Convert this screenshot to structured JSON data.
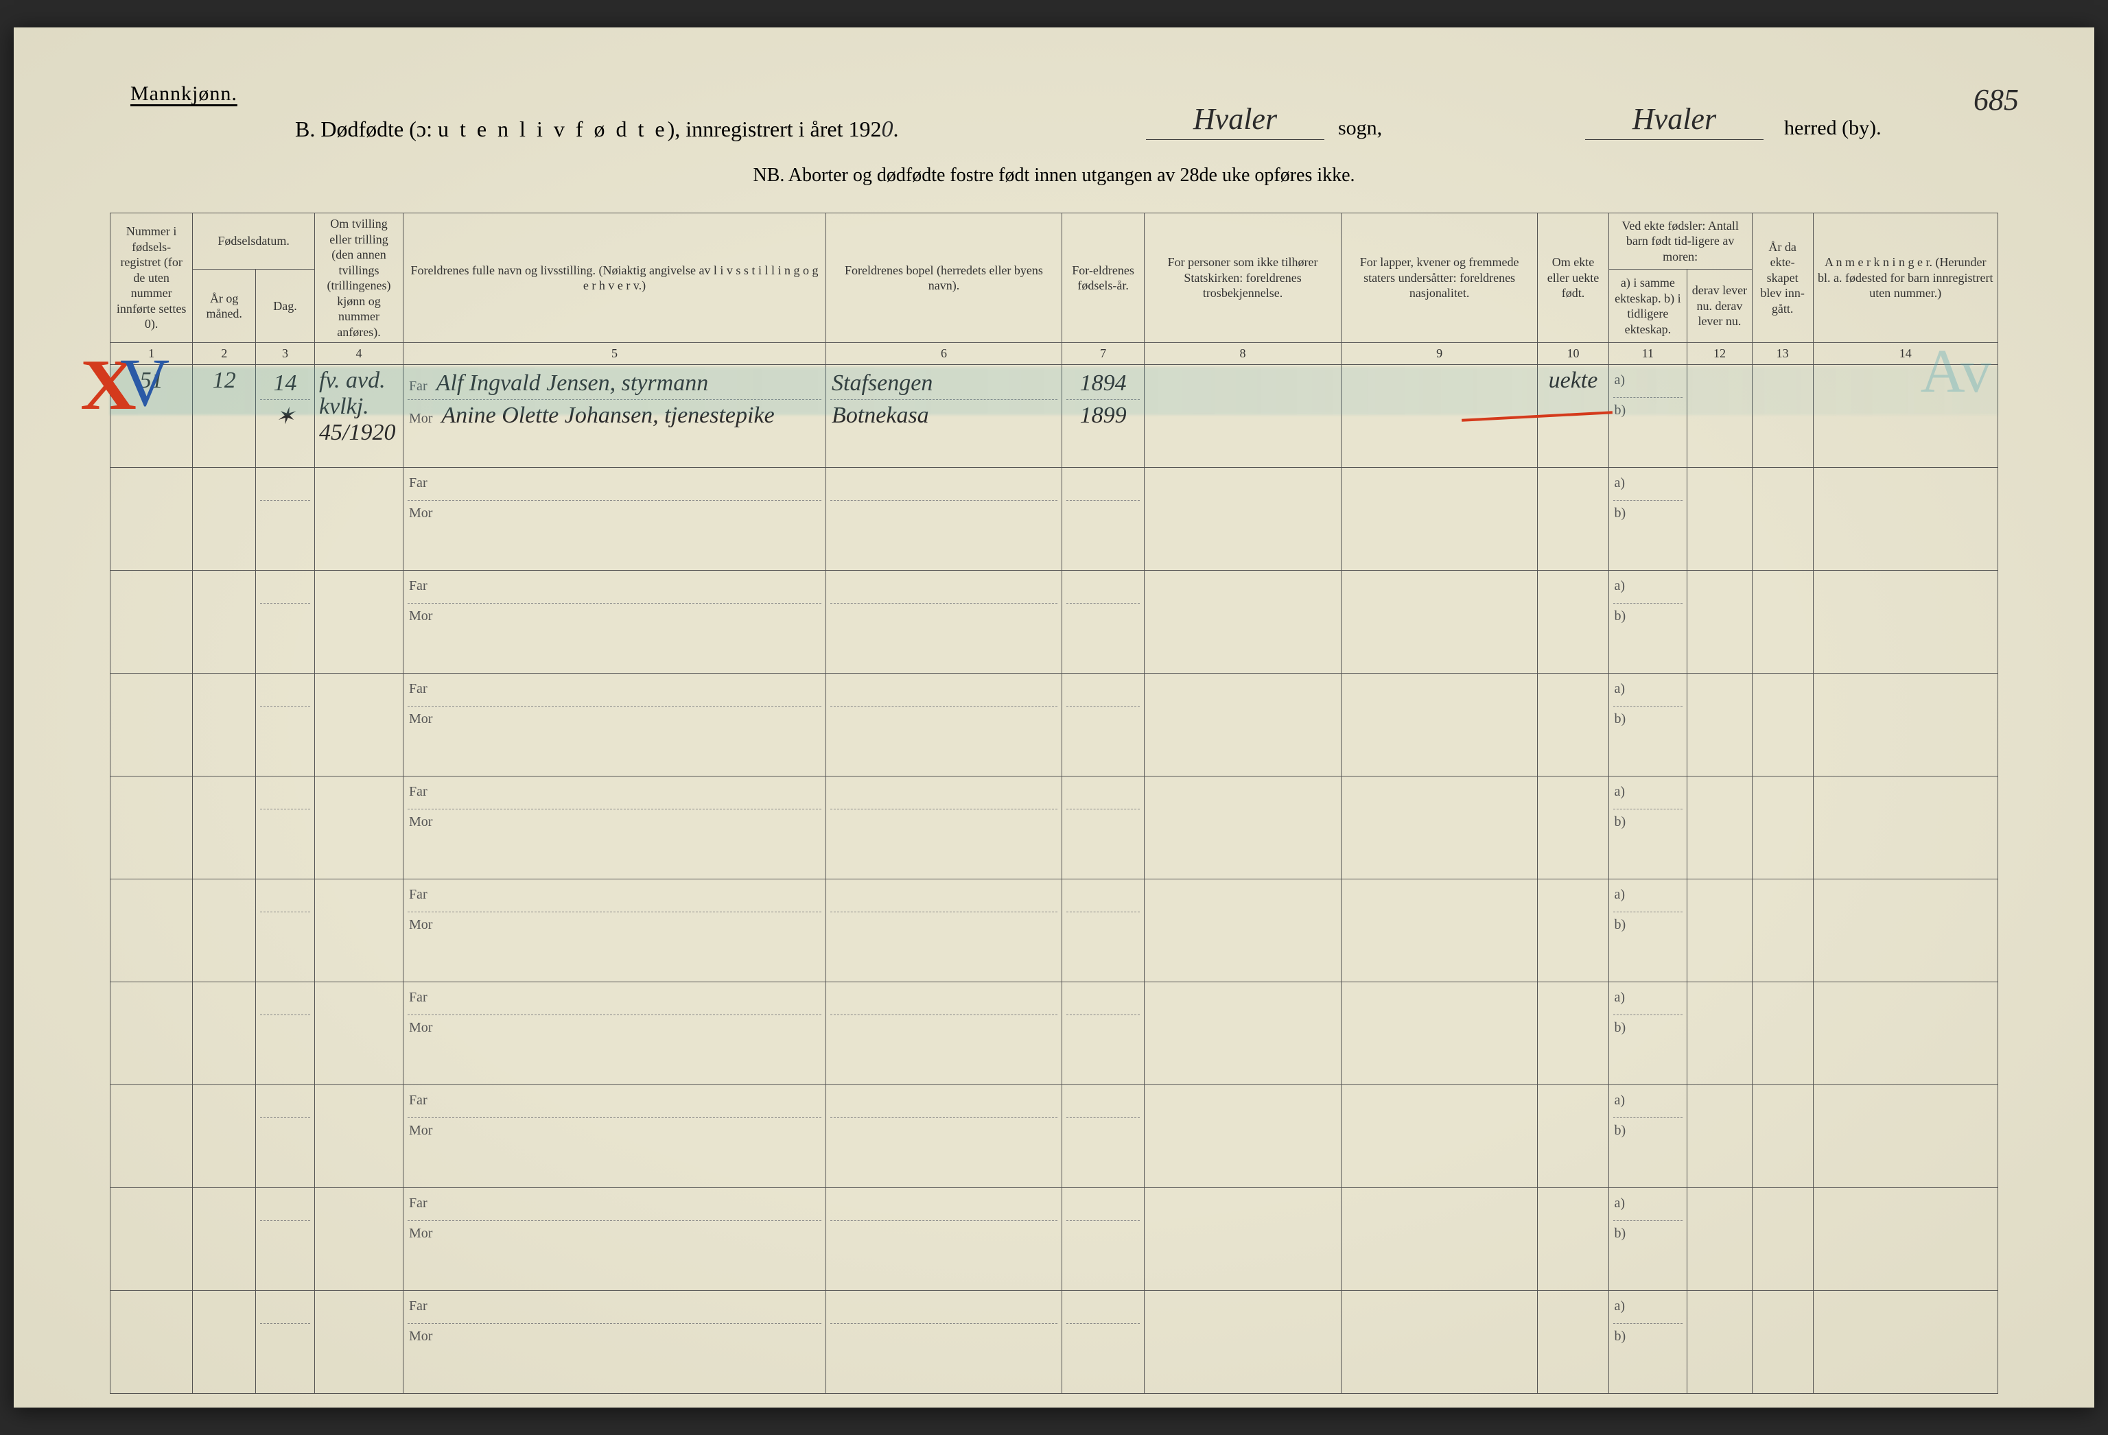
{
  "background_color": "#e8e4cf",
  "ink_color": "#333333",
  "rule_color": "#555555",
  "header": {
    "gender_label": "Mannkjønn.",
    "title_prefix": "B.  Dødfødte (ɔ:  ",
    "title_spaced": "u t e n  l i v  f ø d t e",
    "title_suffix": "),  innregistrert i året 192",
    "year_suffix_hw": "0",
    "title_end": ".",
    "sogn_value": "Hvaler",
    "sogn_label": "sogn,",
    "herred_value": "Hvaler",
    "herred_label": "herred (by).",
    "page_number": "685",
    "nb": "NB.  Aborter og dødfødte fostre født innen utgangen av 28de uke opføres ikke."
  },
  "columns": {
    "c1": "Nummer i fødsels-registret (for de uten nummer innførte settes 0).",
    "c2a": "Fødselsdatum.",
    "c2": "År og måned.",
    "c3": "Dag.",
    "c4": "Om tvilling eller trilling (den annen tvillings (trillingenes) kjønn og nummer anføres).",
    "c5": "Foreldrenes fulle navn og livsstilling. (Nøiaktig angivelse av  l i v s s t i l l i n g  o g  e r h v e r v.)",
    "c6": "Foreldrenes bopel (herredets eller byens navn).",
    "c7": "For-eldrenes fødsels-år.",
    "c8": "For personer som ikke tilhører Statskirken: foreldrenes trosbekjennelse.",
    "c9": "For lapper, kvener og fremmede staters undersåtter: foreldrenes nasjonalitet.",
    "c10": "Om ekte eller uekte født.",
    "c11g": "Ved ekte fødsler: Antall barn født tid-ligere av moren:",
    "c11": "a) i samme ekteskap.  b) i tidligere ekteskap.",
    "c12": "derav lever nu.  derav lever nu.",
    "c13": "År da ekte-skapet blev inn-gått.",
    "c14": "A n m e r k n i n g e r. (Herunder bl. a. fødested for barn innregistrert uten nummer.)",
    "nums": [
      "1",
      "2",
      "3",
      "4",
      "5",
      "6",
      "7",
      "8",
      "9",
      "10",
      "11",
      "12",
      "13",
      "14"
    ]
  },
  "rows": [
    {
      "nr": "51",
      "aar_mnd": "12",
      "dag_a": "14",
      "dag_b": "✶",
      "tvilling": "fv. avd. kvlkj. 45/1920",
      "far_navn": "Alf Ingvald Jensen, styrmann",
      "mor_navn": "Anine Olette Johansen, tjenestepike",
      "far_bopel": "Stafsengen",
      "mor_bopel": "Botnekasa",
      "far_aar": "1894",
      "mor_aar": "1899",
      "ekte": "uekte"
    },
    {},
    {},
    {},
    {},
    {},
    {},
    {},
    {},
    {}
  ],
  "marks": {
    "red_x": "X",
    "blue_v": "V",
    "initials": "Av"
  }
}
